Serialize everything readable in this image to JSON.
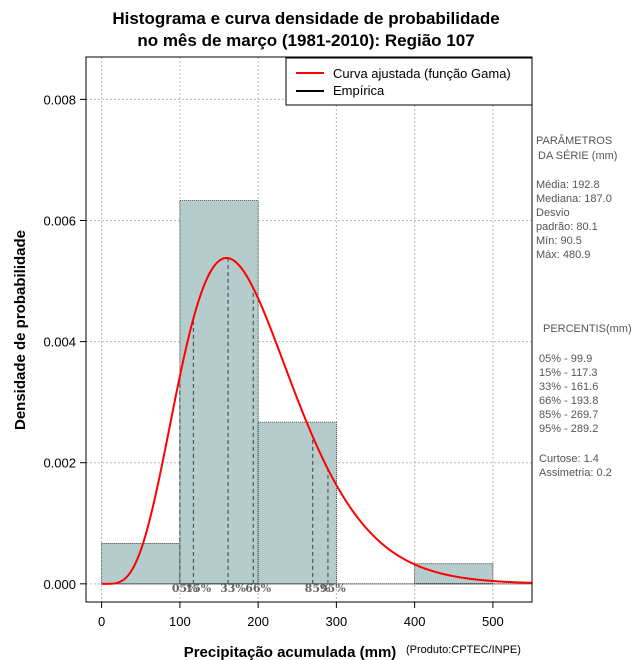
{
  "chart_data": {
    "type": "bar",
    "title_line1": "Histograma e curva densidade de probabilidade",
    "title_line2": "no mês de março (1981-2010): Região 107",
    "xlabel": "Precipitação acumulada (mm)",
    "ylabel": "Densidade de probabilidade",
    "credit": "(Produto:CPTEC/INPE)",
    "xlim": [
      -20,
      550
    ],
    "ylim": [
      -0.0003,
      0.0087
    ],
    "x_ticks": [
      "0",
      "100",
      "200",
      "300",
      "400",
      "500"
    ],
    "x_tick_values": [
      0,
      100,
      200,
      300,
      400,
      500
    ],
    "y_ticks": [
      "0.000",
      "0.002",
      "0.004",
      "0.006",
      "0.008"
    ],
    "y_tick_values": [
      0,
      0.002,
      0.004,
      0.006,
      0.008
    ],
    "grid": true,
    "bins": [
      {
        "start": 0,
        "end": 100,
        "density": 0.000667
      },
      {
        "start": 100,
        "end": 200,
        "density": 0.00633
      },
      {
        "start": 200,
        "end": 300,
        "density": 0.00267
      },
      {
        "start": 300,
        "end": 400,
        "density": 0.0
      },
      {
        "start": 400,
        "end": 500,
        "density": 0.000333
      }
    ],
    "bar_color": "#b4cccc",
    "curve": {
      "name": "Curva ajustada (função Gama)",
      "color": "#ff0000",
      "mean": 192.8,
      "sd": 80.1,
      "x_start": 0,
      "x_end": 550
    },
    "legend": {
      "position": "top-right",
      "entries": [
        {
          "label": "Curva ajustada (função Gama)",
          "color": "#ff0000"
        },
        {
          "label": "Empírica",
          "color": "#000000"
        }
      ]
    },
    "percentile_lines": [
      {
        "label": "05%",
        "value": 99.9
      },
      {
        "label": "15%",
        "value": 117.3
      },
      {
        "label": "33%",
        "value": 161.6
      },
      {
        "label": "66%",
        "value": 193.8
      },
      {
        "label": "85%",
        "value": 269.7
      },
      {
        "label": "95%",
        "value": 289.2
      }
    ]
  },
  "sidebar": {
    "params_title_1": "PARÂMETROS",
    "params_title_2": "DA SÉRIE (mm)",
    "media": "Média:  192.8",
    "mediana": "Mediana:  187.0",
    "desvio_1": "Desvio",
    "desvio_2": "padrão:  80.1",
    "min": "Mín:  90.5",
    "max": "Máx:  480.9",
    "percentis_title": "PERCENTIS(mm)",
    "p05": "05% -   99.9",
    "p15": "15% -  117.3",
    "p33": "33% -  161.6",
    "p66": "66% -  193.8",
    "p85": "85% -  269.7",
    "p95": "95% -  289.2",
    "curtose": "Curtose:  1.4",
    "assimetria": "Assimetria:  0.2"
  }
}
